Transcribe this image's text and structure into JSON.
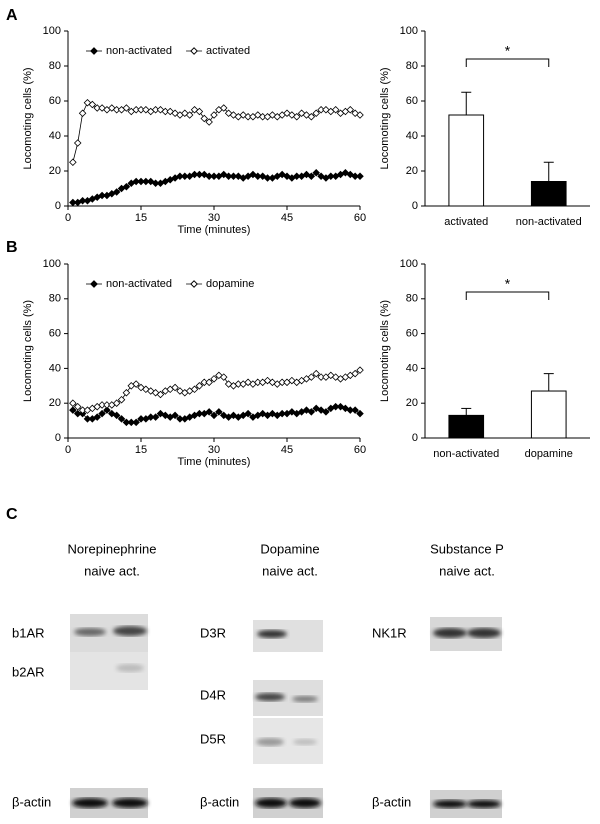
{
  "chart_data": [
    {
      "type": "line",
      "x": [
        1,
        2,
        3,
        4,
        5,
        6,
        7,
        8,
        9,
        10,
        11,
        12,
        13,
        14,
        15,
        16,
        17,
        18,
        19,
        20,
        21,
        22,
        23,
        24,
        25,
        26,
        27,
        28,
        29,
        30,
        31,
        32,
        33,
        34,
        35,
        36,
        37,
        38,
        39,
        40,
        41,
        42,
        43,
        44,
        45,
        46,
        47,
        48,
        49,
        50,
        51,
        52,
        53,
        54,
        55,
        56,
        57,
        58,
        59,
        60
      ],
      "series": [
        {
          "name": "non-activated",
          "color": "#000000",
          "marker": "filled",
          "values": [
            2,
            2,
            3,
            3,
            4,
            5,
            6,
            6,
            7,
            8,
            10,
            11,
            13,
            14,
            14,
            14,
            14,
            13,
            13,
            14,
            15,
            16,
            17,
            17,
            17,
            18,
            18,
            18,
            17,
            17,
            17,
            18,
            17,
            17,
            17,
            16,
            17,
            18,
            17,
            17,
            16,
            16,
            17,
            18,
            17,
            16,
            17,
            17,
            18,
            17,
            19,
            17,
            16,
            17,
            17,
            18,
            19,
            18,
            17,
            17
          ]
        },
        {
          "name": "activated",
          "color": "#000000",
          "marker": "open",
          "values": [
            25,
            36,
            53,
            59,
            58,
            56,
            56,
            55,
            56,
            55,
            55,
            56,
            54,
            55,
            55,
            55,
            54,
            55,
            55,
            54,
            54,
            53,
            52,
            53,
            52,
            55,
            54,
            50,
            48,
            52,
            55,
            56,
            53,
            52,
            51,
            52,
            51,
            51,
            52,
            51,
            51,
            52,
            51,
            52,
            53,
            52,
            51,
            53,
            52,
            51,
            53,
            55,
            55,
            54,
            55,
            53,
            54,
            55,
            53,
            52
          ]
        }
      ],
      "xlim": [
        0,
        60
      ],
      "xticks": [
        0,
        15,
        30,
        45,
        60
      ],
      "ylim": [
        0,
        100
      ],
      "yticks": [
        0,
        20,
        40,
        60,
        80,
        100
      ],
      "xlabel": "Time (minutes)",
      "ylabel": "Locomoting cells (%)",
      "legend": "top-left"
    },
    {
      "type": "bar",
      "categories": [
        "activated",
        "non-activated"
      ],
      "values": [
        52,
        14
      ],
      "errors": [
        13,
        11
      ],
      "colors": [
        "#ffffff",
        "#000000"
      ],
      "ylim": [
        0,
        100
      ],
      "yticks": [
        0,
        20,
        40,
        60,
        80,
        100
      ],
      "ylabel": "Locomoting cells (%)",
      "annotation": "*"
    },
    {
      "type": "line",
      "x": [
        1,
        2,
        3,
        4,
        5,
        6,
        7,
        8,
        9,
        10,
        11,
        12,
        13,
        14,
        15,
        16,
        17,
        18,
        19,
        20,
        21,
        22,
        23,
        24,
        25,
        26,
        27,
        28,
        29,
        30,
        31,
        32,
        33,
        34,
        35,
        36,
        37,
        38,
        39,
        40,
        41,
        42,
        43,
        44,
        45,
        46,
        47,
        48,
        49,
        50,
        51,
        52,
        53,
        54,
        55,
        56,
        57,
        58,
        59,
        60
      ],
      "series": [
        {
          "name": "non-activated",
          "color": "#000000",
          "marker": "filled",
          "values": [
            16,
            14,
            14,
            11,
            11,
            12,
            14,
            16,
            14,
            13,
            11,
            9,
            9,
            9,
            11,
            11,
            12,
            12,
            14,
            13,
            12,
            13,
            11,
            11,
            12,
            13,
            14,
            14,
            15,
            13,
            15,
            13,
            12,
            13,
            12,
            13,
            14,
            12,
            13,
            14,
            13,
            14,
            13,
            14,
            14,
            15,
            14,
            15,
            16,
            15,
            17,
            16,
            15,
            17,
            18,
            18,
            17,
            16,
            16,
            14
          ]
        },
        {
          "name": "dopamine",
          "color": "#000000",
          "marker": "open",
          "values": [
            20,
            18,
            16,
            16,
            17,
            18,
            19,
            19,
            19,
            20,
            22,
            26,
            30,
            31,
            29,
            28,
            27,
            26,
            25,
            27,
            28,
            29,
            27,
            26,
            27,
            28,
            30,
            32,
            32,
            34,
            36,
            35,
            31,
            30,
            31,
            31,
            32,
            31,
            32,
            32,
            33,
            32,
            31,
            32,
            32,
            33,
            32,
            33,
            34,
            35,
            37,
            35,
            35,
            36,
            35,
            34,
            35,
            36,
            37,
            39
          ]
        }
      ],
      "xlim": [
        0,
        60
      ],
      "xticks": [
        0,
        15,
        30,
        45,
        60
      ],
      "ylim": [
        0,
        100
      ],
      "yticks": [
        0,
        20,
        40,
        60,
        80,
        100
      ],
      "xlabel": "Time (minutes)",
      "ylabel": "Locomoting cells (%)",
      "legend": "top-left"
    },
    {
      "type": "bar",
      "categories": [
        "non-activated",
        "dopamine"
      ],
      "values": [
        13,
        27
      ],
      "errors": [
        4,
        10
      ],
      "colors": [
        "#000000",
        "#ffffff"
      ],
      "ylim": [
        0,
        100
      ],
      "yticks": [
        0,
        20,
        40,
        60,
        80,
        100
      ],
      "ylabel": "Locomoting cells (%)",
      "annotation": "*"
    }
  ],
  "panels": [
    "A",
    "B",
    "C"
  ],
  "blots": [
    {
      "title": "Norepinephrine",
      "lanes": "naive act.",
      "rows": [
        "b1AR",
        "b2AR",
        "β-actin"
      ]
    },
    {
      "title": "Dopamine",
      "lanes": "naive act.",
      "rows": [
        "D3R",
        "D4R",
        "D5R",
        "β-actin"
      ]
    },
    {
      "title": "Substance P",
      "lanes": "naive act.",
      "rows": [
        "NK1R",
        "β-actin"
      ]
    }
  ]
}
